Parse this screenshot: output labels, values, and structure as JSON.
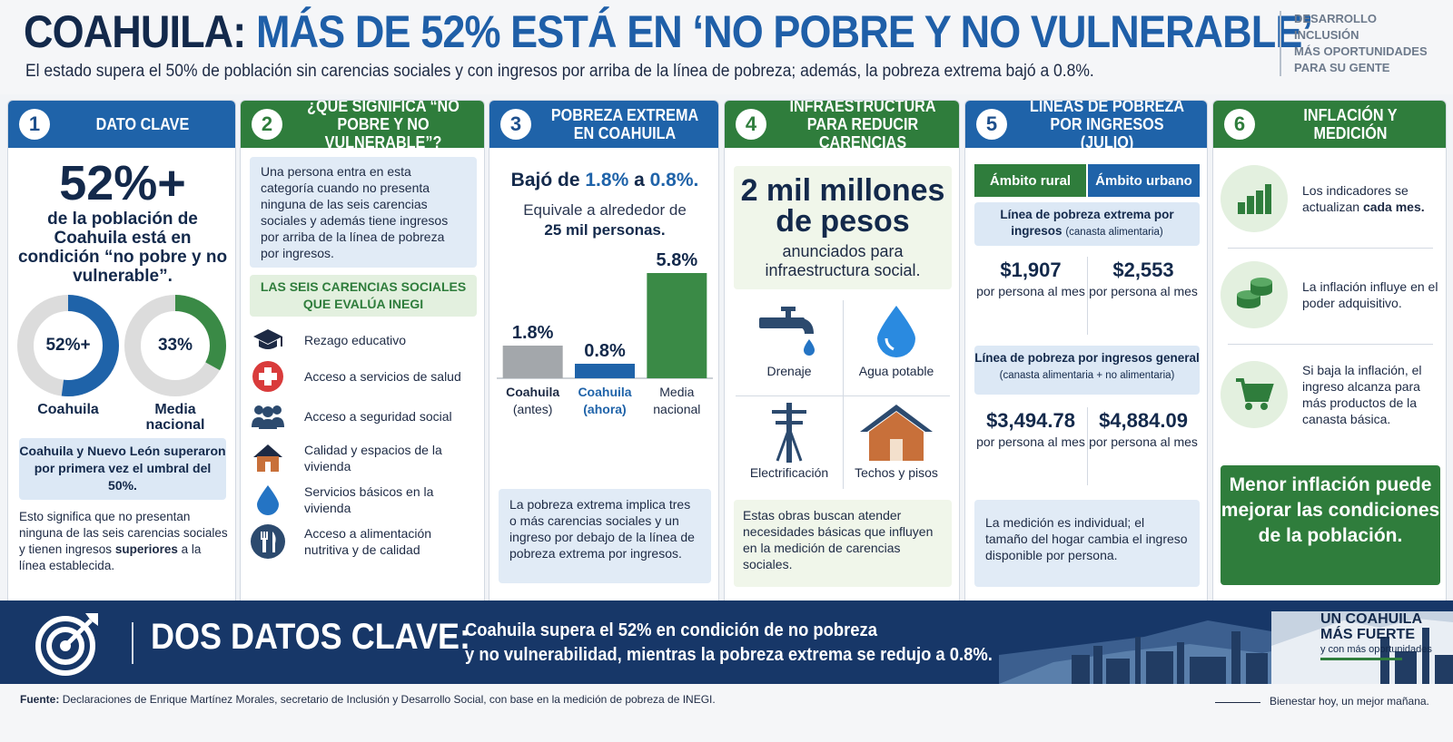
{
  "header": {
    "title_lead": "COAHUILA:",
    "title_rest": "MÁS DE 52% ESTÁ EN ‘NO POBRE Y NO VULNERABLE’",
    "subtitle": "El estado supera el 50% de población sin carencias sociales y con ingresos por arriba de la línea de pobreza; además, la pobreza extrema bajó a 0.8%.",
    "tagline": [
      "DESARROLLO",
      "INCLUSIÓN",
      "MÁS OPORTUNIDADES",
      "PARA SU GENTE"
    ]
  },
  "panel1": {
    "number": "1",
    "title": "DATO CLAVE",
    "big_value": "52%+",
    "description": "de la población de Coahuila está en condición “no pobre y no vulnerable”.",
    "donuts": [
      {
        "label": "52%+",
        "caption": "Coahuila",
        "value": 52,
        "color": "#1f63a9"
      },
      {
        "label": "33%",
        "caption": "Media nacional",
        "value": 33,
        "color": "#3a8a46"
      }
    ],
    "highlight": "Coahuila y Nuevo León superaron por primera vez el umbral del 50%.",
    "note_pre": "Esto significa que no presentan ninguna de las seis carencias sociales y tienen ingresos",
    "note_bold": "superiores",
    "note_post": "a la línea establecida."
  },
  "panel2": {
    "number": "2",
    "title": "¿QUÉ SIGNIFICA “NO POBRE Y NO VULNERABLE”?",
    "definition": "Una persona entra en esta categoría cuando no presenta ninguna de las seis carencias sociales y además tiene ingresos por arriba de la línea de pobreza por ingresos.",
    "subheading": "LAS SEIS CARENCIAS SOCIALES QUE EVALÚA INEGI",
    "lacks": [
      {
        "icon": "graduation-cap-icon",
        "label": "Rezago educativo"
      },
      {
        "icon": "health-cross-icon",
        "label": "Acceso a servicios de salud"
      },
      {
        "icon": "people-group-icon",
        "label": "Acceso a seguridad social"
      },
      {
        "icon": "house-icon",
        "label": "Calidad y espacios de la vivienda"
      },
      {
        "icon": "water-drop-icon",
        "label": "Servicios básicos en la vivienda"
      },
      {
        "icon": "fork-knife-icon",
        "label": "Acceso a alimentación nutritiva y de calidad"
      }
    ]
  },
  "panel3": {
    "number": "3",
    "title": "POBREZA EXTREMA EN COAHUILA",
    "drop_pre": "Bajó de",
    "drop_from": "1.8%",
    "drop_mid": "a",
    "drop_to": "0.8%.",
    "equiv": "Equivale a alrededor de",
    "equiv_value": "25 mil personas.",
    "note": "La pobreza extrema implica tres o más carencias sociales y un ingreso por debajo de la línea de pobreza extrema por ingresos."
  },
  "chart_data": {
    "type": "bar",
    "categories": [
      "Coahuila (antes)",
      "Coahuila (ahora)",
      "Media nacional"
    ],
    "values": [
      1.8,
      0.8,
      5.8
    ],
    "data_labels": [
      "1.8%",
      "0.8%",
      "5.8%"
    ],
    "colors": [
      "#a3a7ab",
      "#1f63a9",
      "#3a8a46"
    ],
    "ylim": [
      0,
      6
    ]
  },
  "panel4": {
    "number": "4",
    "title": "INFRAESTRUCTURA PARA REDUCIR CARENCIAS",
    "amount": "2 mil millones de pesos",
    "amount_desc": "anunciados para infraestructura social.",
    "items": [
      {
        "icon": "faucet-icon",
        "label": "Drenaje"
      },
      {
        "icon": "water-drop-icon",
        "label": "Agua potable"
      },
      {
        "icon": "power-pole-icon",
        "label": "Electrificación"
      },
      {
        "icon": "house-icon",
        "label": "Techos y pisos"
      }
    ],
    "note": "Estas obras buscan atender necesidades básicas que influyen en la medición de carencias sociales."
  },
  "panel5": {
    "number": "5",
    "title": "LÍNEAS DE POBREZA POR INGRESOS (JULIO)",
    "tab_rural": "Ámbito rural",
    "tab_urban": "Ámbito urbano",
    "line1_title": "Línea de pobreza extrema por ingresos",
    "line1_small": "(canasta alimentaria)",
    "line1_rural": "$1,907",
    "line1_urban": "$2,553",
    "line2_title": "Línea de pobreza por ingresos general",
    "line2_small": "(canasta alimentaria + no alimentaria)",
    "line2_rural": "$3,494.78",
    "line2_urban": "$4,884.09",
    "unit": "por persona al mes",
    "note": "La medición es individual; el tamaño del hogar cambia el ingreso disponible por persona."
  },
  "panel6": {
    "number": "6",
    "title": "INFLACIÓN Y MEDICIÓN",
    "row1_pre": "Los indicadores se actualizan",
    "row1_bold": "cada mes.",
    "row2": "La inflación influye en el poder adquisitivo.",
    "row3": "Si baja la inflación, el ingreso alcanza para más productos de la canasta básica.",
    "callout": "Menor inflación puede mejorar las condiciones de la población."
  },
  "banner": {
    "label": "DOS DATOS CLAVE:",
    "text_line1": "Coahuila supera el 52% en condición de no pobreza",
    "text_line2": "y no vulnerabilidad, mientras la pobreza extrema se redujo a 0.8%.",
    "brand_line1": "UN COAHUILA",
    "brand_line2": "MÁS FUERTE",
    "brand_tag": "y con más oportunidades"
  },
  "footer": {
    "source_label": "Fuente:",
    "source_text": "Declaraciones de Enrique Martínez Morales, secretario de Inclusión y Desarrollo Social, con base en la medición de pobreza de INEGI.",
    "slogan": "Bienestar hoy, un mejor mañana."
  }
}
